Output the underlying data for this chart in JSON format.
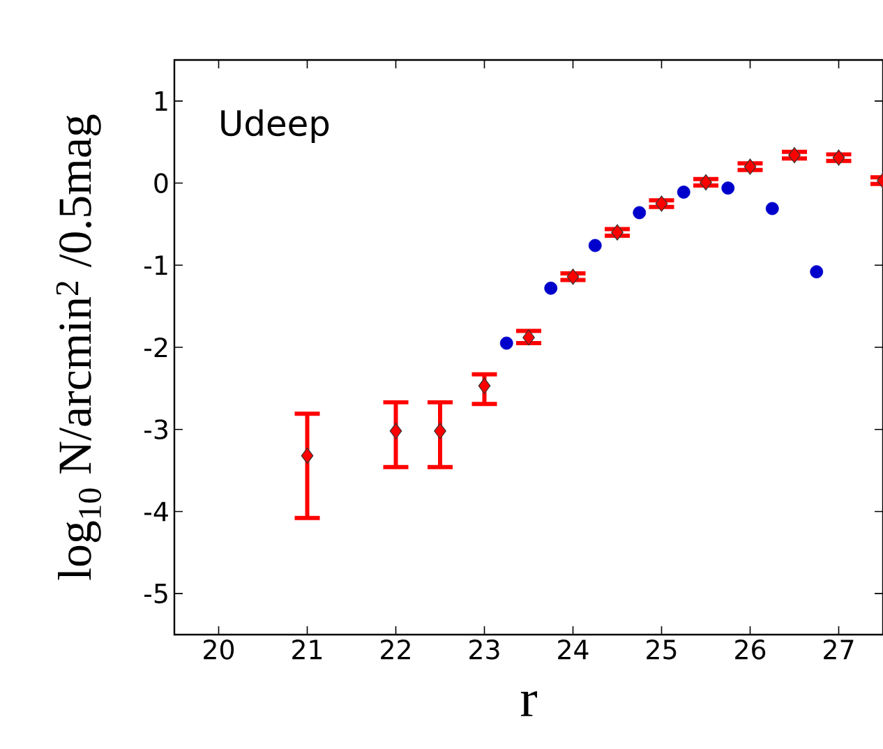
{
  "chart_data": {
    "type": "scatter",
    "xlabel": "r",
    "ylabel": "log$_{10}$ N/arcmin$^{2}$ /0.5mag",
    "annotations": [
      "Udeep"
    ],
    "xlim": [
      19.5,
      27.5
    ],
    "ylim": [
      -5.5,
      1.5
    ],
    "xticks": [
      20,
      21,
      22,
      23,
      24,
      25,
      26,
      27
    ],
    "yticks": [
      -5,
      -4,
      -3,
      -2,
      -1,
      0,
      1
    ],
    "series": [
      {
        "color": "#ff0000",
        "marker": "diamond",
        "x": [
          21,
          22,
          22.5,
          23,
          23.5,
          24,
          24.5,
          25,
          25.5,
          26,
          26.5,
          27,
          27.5
        ],
        "values": [
          -3.32,
          -3.02,
          -3.02,
          -2.47,
          -1.88,
          -1.14,
          -0.6,
          -0.25,
          0.01,
          0.2,
          0.34,
          0.31,
          0.03
        ],
        "errors": [
          [
            -4.08,
            -2.81
          ],
          [
            -3.46,
            -2.67
          ],
          [
            -3.46,
            -2.67
          ],
          [
            -2.69,
            -2.33
          ],
          [
            -1.95,
            -1.8
          ],
          0.04,
          0.04,
          0.04,
          0.04,
          0.04,
          0.04,
          0.04,
          0.04
        ]
      },
      {
        "color": "#0000cc",
        "marker": "circle",
        "x": [
          23.25,
          23.75,
          24.25,
          24.75,
          25.25,
          25.75,
          26.25,
          26.75
        ],
        "values": [
          -1.95,
          -1.28,
          -0.76,
          -0.36,
          -0.11,
          -0.06,
          -0.31,
          -1.08
        ]
      }
    ]
  }
}
